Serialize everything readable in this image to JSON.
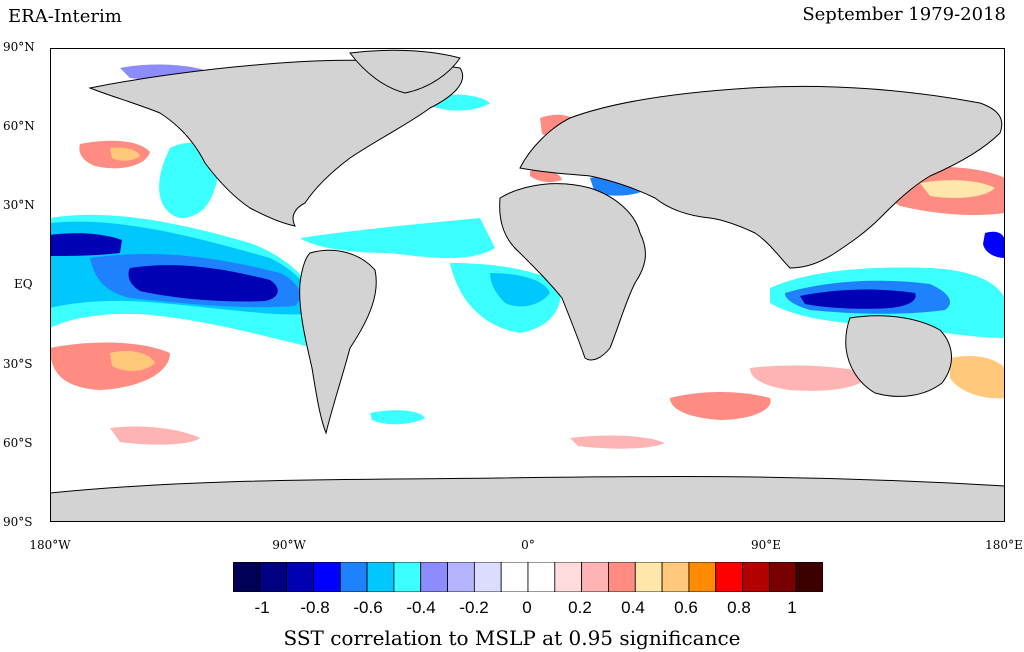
{
  "header": {
    "title_left": "ERA-Interim",
    "title_right": "September 1979-2018"
  },
  "axes": {
    "lat_labels": [
      "90°N",
      "60°N",
      "30°N",
      "EQ",
      "30°S",
      "60°S",
      "90°S"
    ],
    "lon_labels": [
      "180°W",
      "90°W",
      "0°",
      "90°E",
      "180°E"
    ]
  },
  "colorbar": {
    "colors": [
      "#000054",
      "#000080",
      "#0000b4",
      "#0000ff",
      "#1e82ff",
      "#00c8ff",
      "#3cffff",
      "#8c8cff",
      "#b4b4ff",
      "#dcdcff",
      "#ffffff",
      "#ffffff",
      "#ffdcdc",
      "#ffb4b4",
      "#ff8c82",
      "#ffe6aa",
      "#ffc87a",
      "#ff8c00",
      "#ff0000",
      "#b40000",
      "#780000",
      "#3c0000"
    ],
    "tick_labels": [
      "-1",
      "-0.8",
      "-0.6",
      "-0.4",
      "-0.2",
      "0",
      "0.2",
      "0.4",
      "0.6",
      "0.8",
      "1"
    ]
  },
  "caption": "SST correlation to MSLP at 0.95 significance",
  "map_data": {
    "field": "SST correlation to MSLP",
    "land_color": "#d3d3d3",
    "ocean_color": "#ffffff",
    "regions": [
      {
        "name": "central-east-pacific-strong-negative",
        "correlation": -0.8
      },
      {
        "name": "pacific-negative-band",
        "correlation": -0.5
      },
      {
        "name": "maritime-continent-negative",
        "correlation": -0.7
      },
      {
        "name": "tropical-atlantic-negative",
        "correlation": -0.4
      },
      {
        "name": "mediterranean-negative",
        "correlation": -0.5
      },
      {
        "name": "north-pacific-positive",
        "correlation": 0.3
      },
      {
        "name": "south-pacific-positive",
        "correlation": 0.3
      },
      {
        "name": "baltic-positive",
        "correlation": 0.35
      },
      {
        "name": "southern-indian-ocean-positive",
        "correlation": 0.25
      }
    ]
  }
}
